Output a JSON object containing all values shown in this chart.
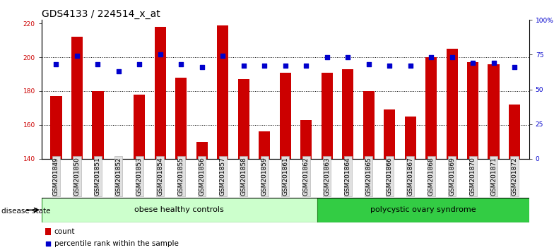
{
  "title": "GDS4133 / 224514_x_at",
  "samples": [
    "GSM201849",
    "GSM201850",
    "GSM201851",
    "GSM201852",
    "GSM201853",
    "GSM201854",
    "GSM201855",
    "GSM201856",
    "GSM201857",
    "GSM201858",
    "GSM201859",
    "GSM201861",
    "GSM201862",
    "GSM201863",
    "GSM201864",
    "GSM201865",
    "GSM201866",
    "GSM201867",
    "GSM201868",
    "GSM201869",
    "GSM201870",
    "GSM201871",
    "GSM201872"
  ],
  "bar_values": [
    177,
    212,
    180,
    138,
    178,
    218,
    188,
    150,
    219,
    187,
    156,
    191,
    163,
    191,
    193,
    180,
    169,
    165,
    200,
    205,
    197,
    196,
    172
  ],
  "percentile_values": [
    68,
    74,
    68,
    63,
    68,
    75,
    68,
    66,
    74,
    67,
    67,
    67,
    67,
    73,
    73,
    68,
    67,
    67,
    73,
    73,
    69,
    69,
    66
  ],
  "groups": [
    {
      "label": "obese healthy controls",
      "start": 0,
      "end": 13,
      "color": "#CCFFCC"
    },
    {
      "label": "polycystic ovary syndrome",
      "start": 13,
      "end": 23,
      "color": "#33CC44"
    }
  ],
  "disease_state_label": "disease state",
  "ylim_left": [
    140,
    222
  ],
  "ylim_right": [
    0,
    100
  ],
  "yticks_left": [
    140,
    160,
    180,
    200,
    220
  ],
  "yticks_right": [
    0,
    25,
    50,
    75,
    100
  ],
  "bar_color": "#CC0000",
  "dot_color": "#0000CC",
  "background_color": "#ffffff",
  "legend_items": [
    "count",
    "percentile rank within the sample"
  ],
  "title_fontsize": 10,
  "tick_fontsize": 6.5,
  "label_fontsize": 7.5,
  "group_label_fontsize": 8
}
